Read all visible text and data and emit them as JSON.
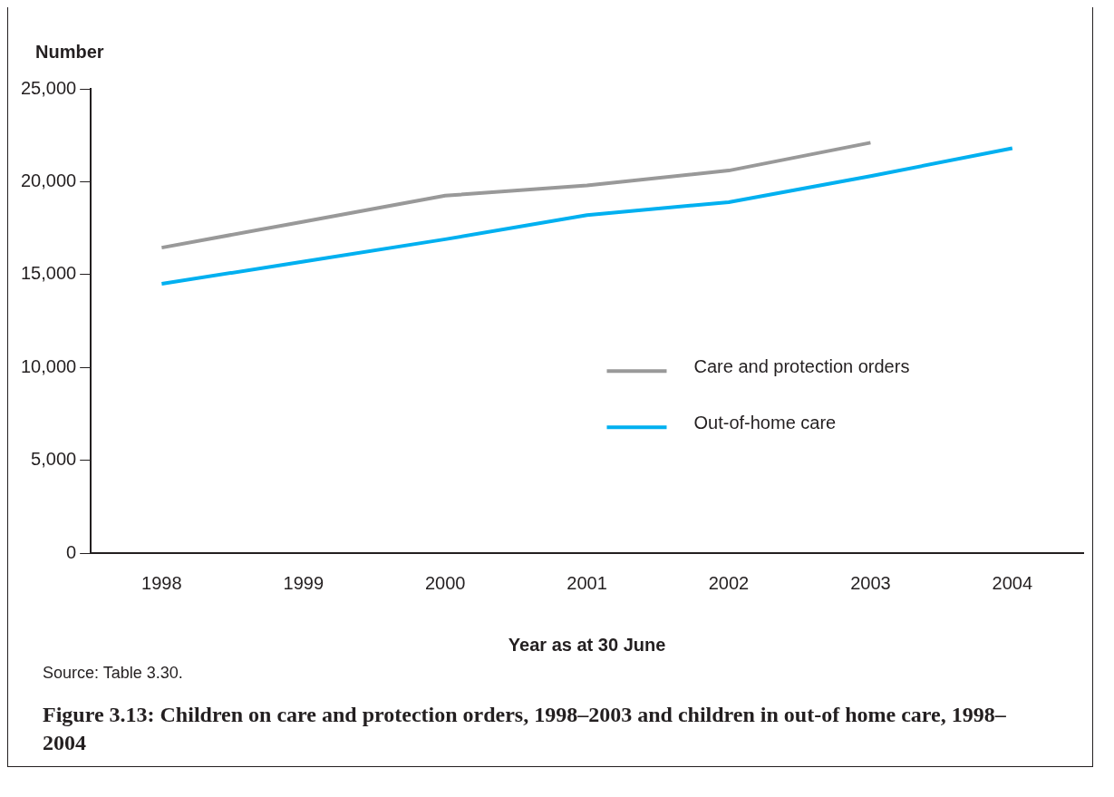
{
  "chart_data": {
    "type": "line",
    "title": "Figure 3.13: Children on care and protection orders, 1998–2003 and children in out-of home care, 1998–2004",
    "xlabel": "Year as at 30 June",
    "ylabel": "Number",
    "annotations": [
      "Source: Table 3.30."
    ],
    "categories": [
      "1998",
      "1999",
      "2000",
      "2001",
      "2002",
      "2003",
      "2004"
    ],
    "series": [
      {
        "name": "Care and protection orders",
        "color": "#999999",
        "values": [
          16450,
          17850,
          19250,
          19800,
          20600,
          22100,
          null
        ]
      },
      {
        "name": "Out-of-home care",
        "color": "#00b0f0",
        "values": [
          14500,
          15700,
          16900,
          18200,
          18900,
          20300,
          21800
        ]
      }
    ],
    "ylim": [
      0,
      25000
    ],
    "yticks": [
      {
        "value": 0,
        "label": "0"
      },
      {
        "value": 5000,
        "label": "5,000"
      },
      {
        "value": 10000,
        "label": "10,000"
      },
      {
        "value": 15000,
        "label": "15,000"
      },
      {
        "value": 20000,
        "label": "20,000"
      },
      {
        "value": 25000,
        "label": "25,000"
      }
    ],
    "grid": false,
    "legend": "right",
    "marker": "none",
    "line_style": "solid"
  }
}
